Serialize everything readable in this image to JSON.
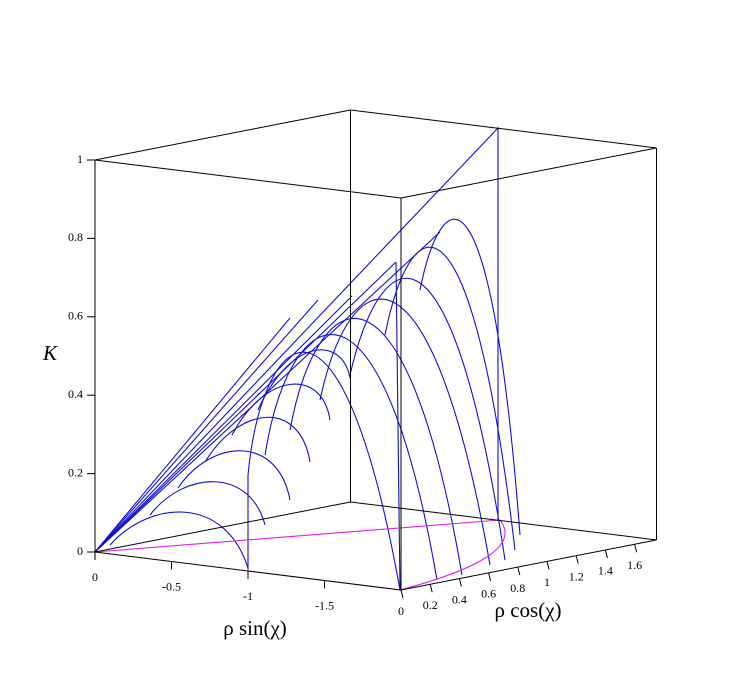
{
  "chart_data": {
    "type": "line3d",
    "xlabel": "ρ sin(χ)",
    "ylabel": "ρ cos(χ)",
    "zlabel": "K",
    "xlim": [
      0,
      -2
    ],
    "xticks": [
      0,
      -0.5,
      -1,
      -1.5
    ],
    "ylim": [
      0,
      1.75
    ],
    "yticks": [
      0,
      0.2,
      0.4,
      0.6,
      0.8,
      1,
      1.2,
      1.4,
      1.6
    ],
    "zlim": [
      0,
      1
    ],
    "zticks": [
      0,
      0.2,
      0.4,
      0.6,
      0.8,
      1
    ],
    "box": true,
    "curve_color": "#1010d0",
    "floor_color": "#e020e0"
  }
}
